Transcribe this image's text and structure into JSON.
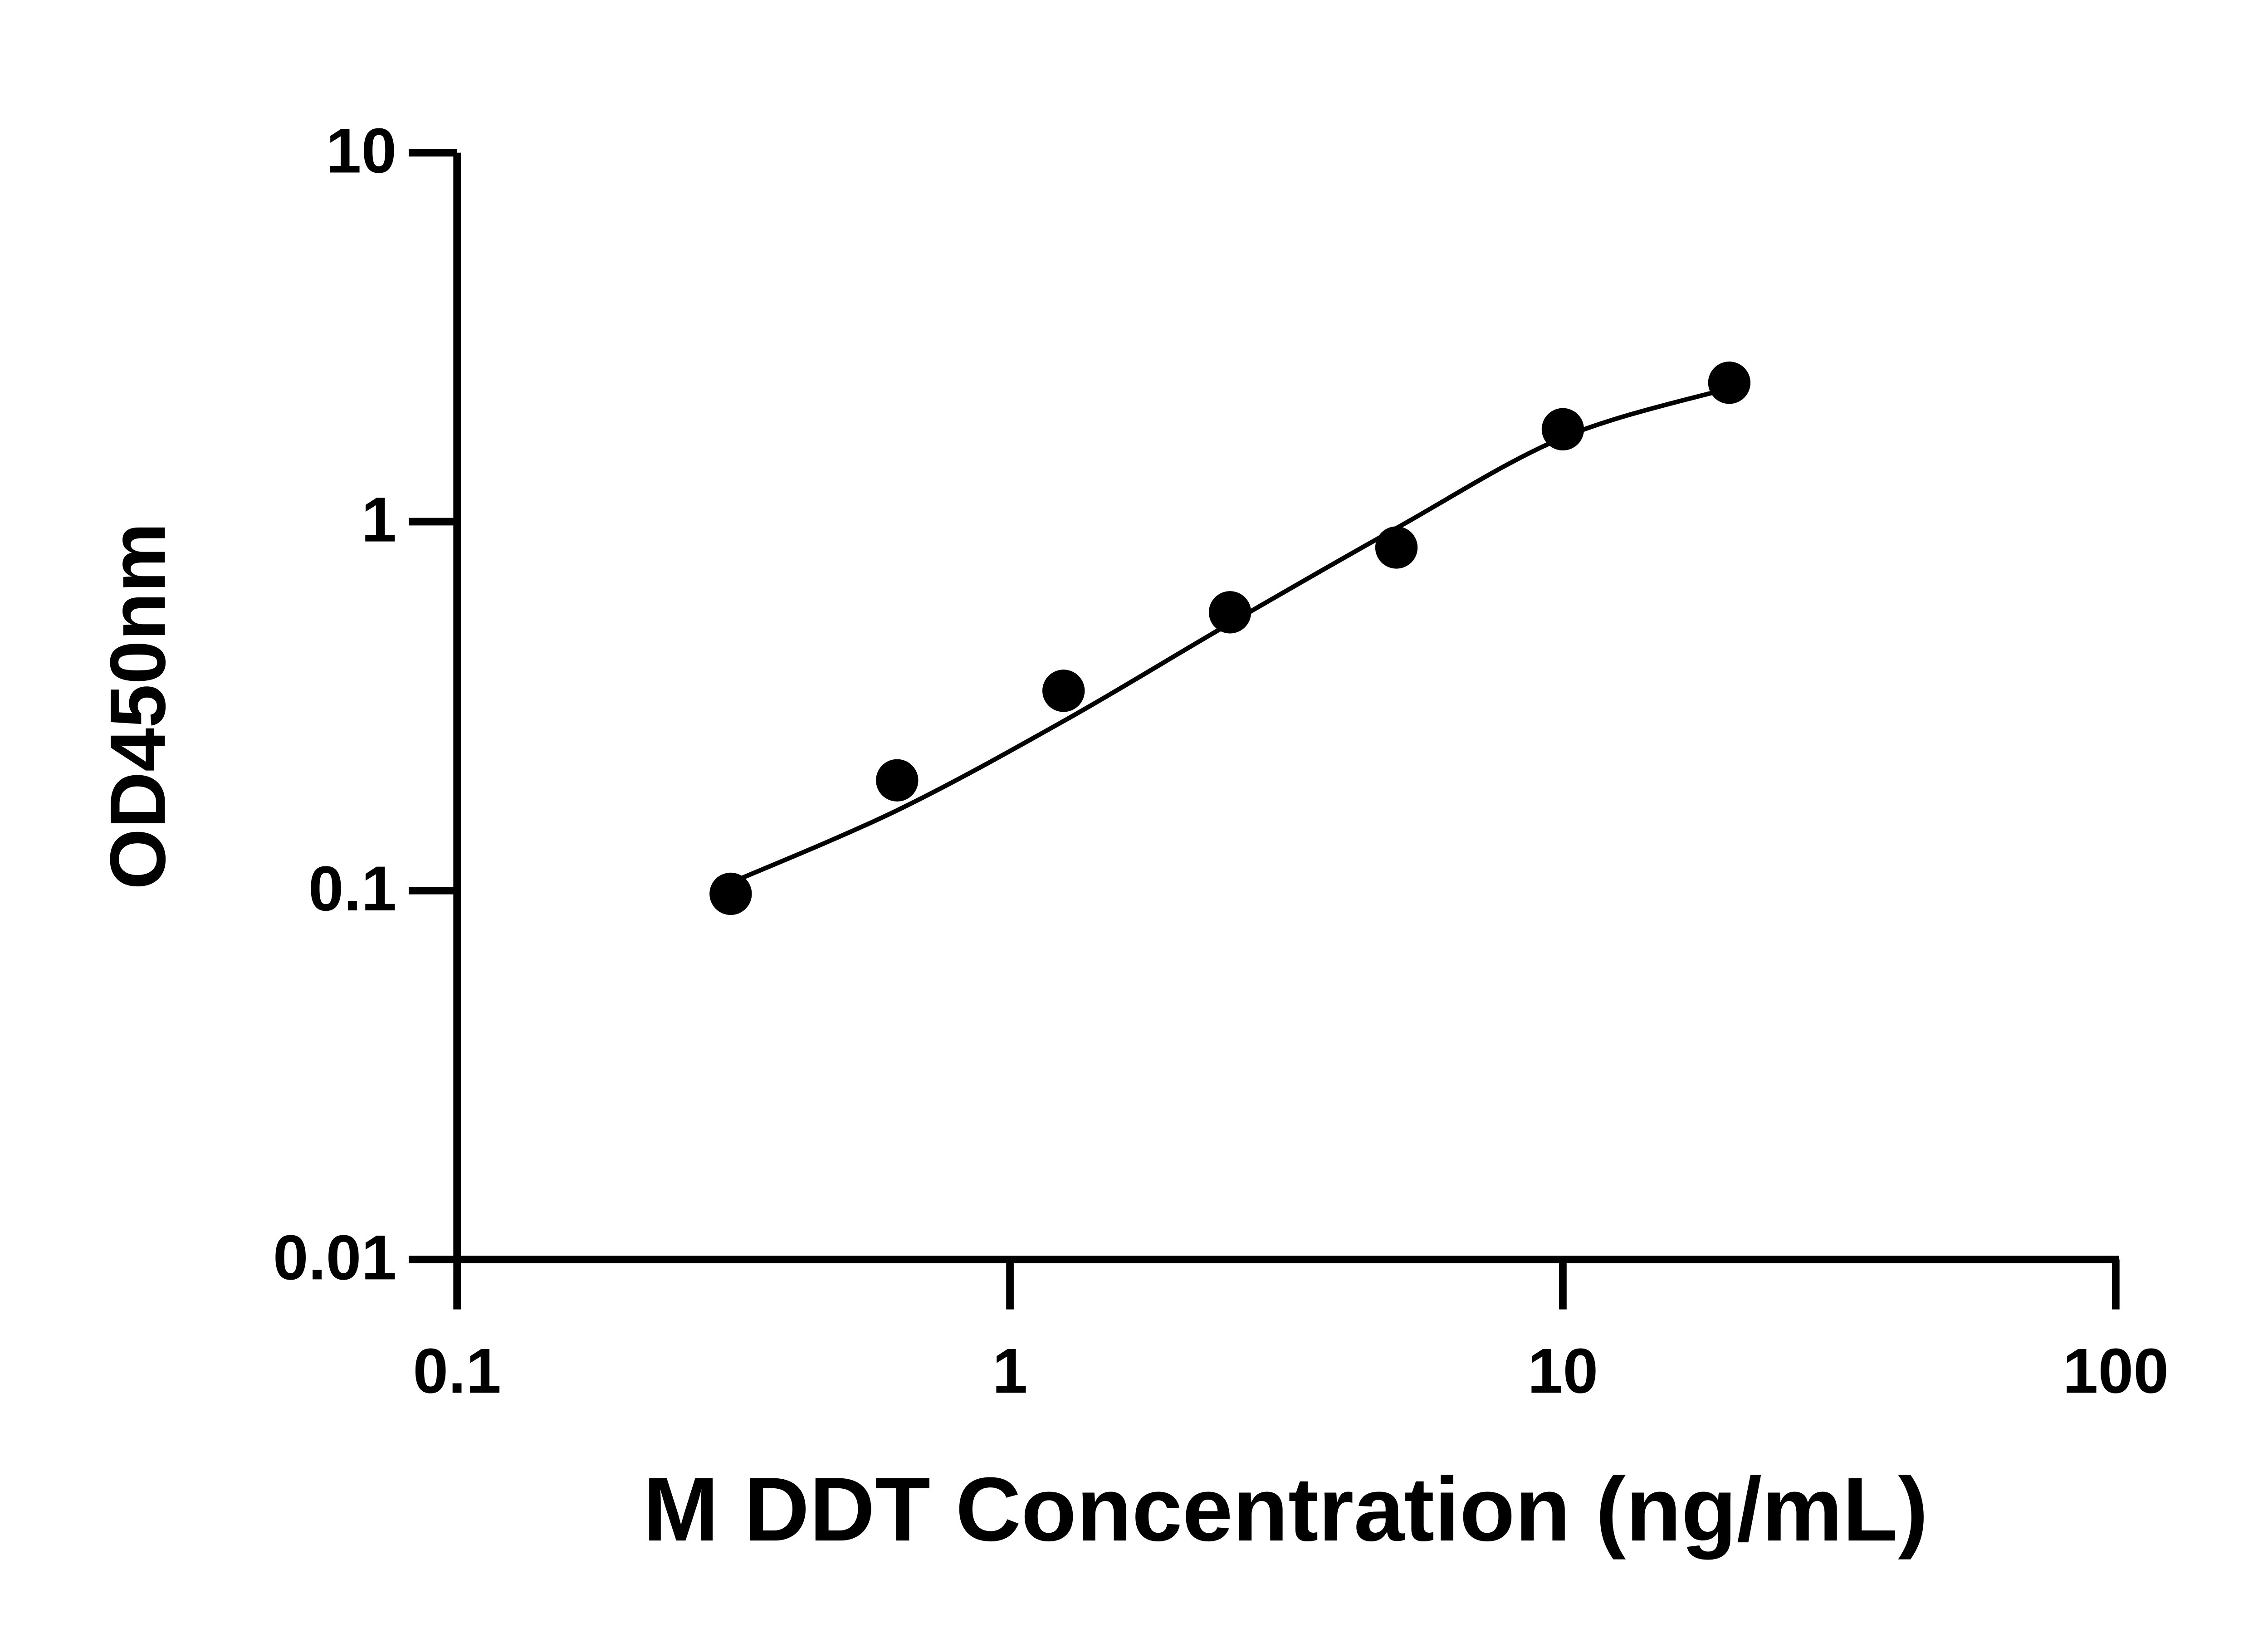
{
  "chart_data": {
    "type": "scatter",
    "x_label": "M DDT Concentration (ng/mL)",
    "y_label": "OD450nm",
    "xlog": true,
    "ylog": true,
    "xlim": [
      0.1,
      100
    ],
    "ylim": [
      0.01,
      10
    ],
    "xticks": [
      0.1,
      1,
      10,
      100
    ],
    "yticks": [
      0.01,
      0.1,
      1,
      10
    ],
    "series": [
      {
        "type": "scatter",
        "color": "#000000",
        "x": [
          0.3125,
          0.625,
          1.25,
          2.5,
          5,
          10,
          20
        ],
        "values": [
          0.098,
          0.199,
          0.348,
          0.568,
          0.851,
          1.78,
          2.38
        ]
      },
      {
        "type": "line",
        "color": "#000000",
        "x": [
          0.3125,
          0.625,
          1.25,
          2.5,
          5,
          10,
          20
        ],
        "values": [
          0.105,
          0.165,
          0.288,
          0.53,
          0.96,
          1.69,
          2.3
        ]
      }
    ]
  }
}
